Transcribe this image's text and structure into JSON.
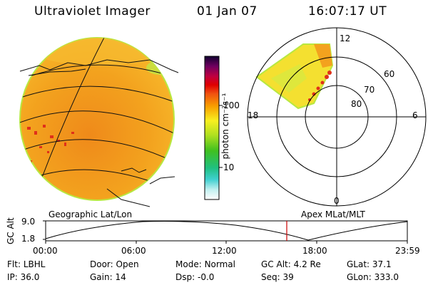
{
  "header": {
    "instrument": "Ultraviolet Imager",
    "date": "01 Jan 07",
    "time": "16:07:17 UT"
  },
  "colorbar": {
    "unit": "photon cm⁻²s⁻¹",
    "tick_high": "100",
    "tick_low": "10"
  },
  "panels": {
    "left_label": "Geographic Lat/Lon",
    "right_label": "Apex  MLat/MLT"
  },
  "polar": {
    "mlt_labels": {
      "top": "12",
      "left": "18",
      "right": "6",
      "bottom": "0"
    },
    "lat_labels": [
      "60",
      "70",
      "80"
    ]
  },
  "altitude_plot": {
    "ylabel": "GC Alt",
    "y_ticks": [
      "9.0",
      "1.8"
    ],
    "x_ticks": [
      "00:00",
      "06:00",
      "12:00",
      "18:00",
      "23:59"
    ],
    "marker_time": "16:07",
    "marker_color": "#cc0000"
  },
  "status": {
    "flt_label": "Flt:",
    "flt_value": "LBHL",
    "door_label": "Door:",
    "door_value": "Open",
    "mode_label": "Mode:",
    "mode_value": "Normal",
    "gcalt_label": "GC Alt:",
    "gcalt_value": "4.2 Re",
    "glat_label": "GLat:",
    "glat_value": "37.1",
    "ip_label": "IP:",
    "ip_value": "36.0",
    "gain_label": "Gain:",
    "gain_value": "14",
    "dsp_label": "Dsp:",
    "dsp_value": "-0.0",
    "seq_label": "Seq:",
    "seq_value": "39",
    "glon_label": "GLon:",
    "glon_value": "333.0"
  },
  "colors": {
    "image_base": "#f3a21e",
    "image_hot": "#e0301a",
    "image_green": "#c8e040"
  }
}
